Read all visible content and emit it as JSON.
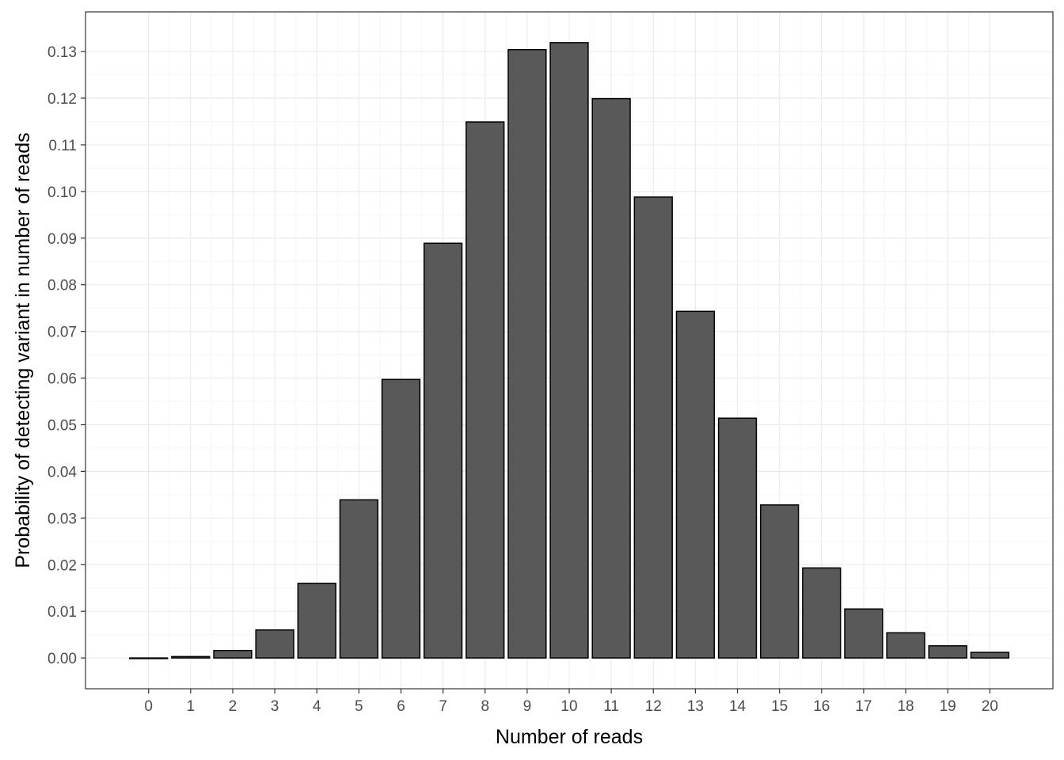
{
  "chart_data": {
    "type": "bar",
    "title": "",
    "xlabel": "Number of reads",
    "ylabel": "Probability of detecting variant in number of reads",
    "categories": [
      "0",
      "1",
      "2",
      "3",
      "4",
      "5",
      "6",
      "7",
      "8",
      "9",
      "10",
      "11",
      "12",
      "13",
      "14",
      "15",
      "16",
      "17",
      "18",
      "19",
      "20"
    ],
    "values": [
      0.0,
      0.0003,
      0.0016,
      0.006,
      0.016,
      0.0339,
      0.0597,
      0.0889,
      0.1149,
      0.1304,
      0.1319,
      0.1199,
      0.0988,
      0.0743,
      0.0514,
      0.0328,
      0.0193,
      0.0105,
      0.0054,
      0.0026,
      0.0012
    ],
    "y_ticks": [
      0.0,
      0.01,
      0.02,
      0.03,
      0.04,
      0.05,
      0.06,
      0.07,
      0.08,
      0.09,
      0.1,
      0.11,
      0.12,
      0.13
    ],
    "y_tick_labels": [
      "0.00",
      "0.01",
      "0.02",
      "0.03",
      "0.04",
      "0.05",
      "0.06",
      "0.07",
      "0.08",
      "0.09",
      "0.10",
      "0.11",
      "0.12",
      "0.13"
    ],
    "ylim": [
      -0.0066,
      0.1385
    ],
    "xlim": [
      -1.5,
      21.5
    ],
    "grid": true,
    "legend": "none",
    "colors": {
      "bar_fill": "#595959",
      "bar_stroke": "#000000",
      "grid_major": "#ebebeb",
      "grid_minor": "#f5f5f5",
      "panel_border": "#333333"
    }
  }
}
